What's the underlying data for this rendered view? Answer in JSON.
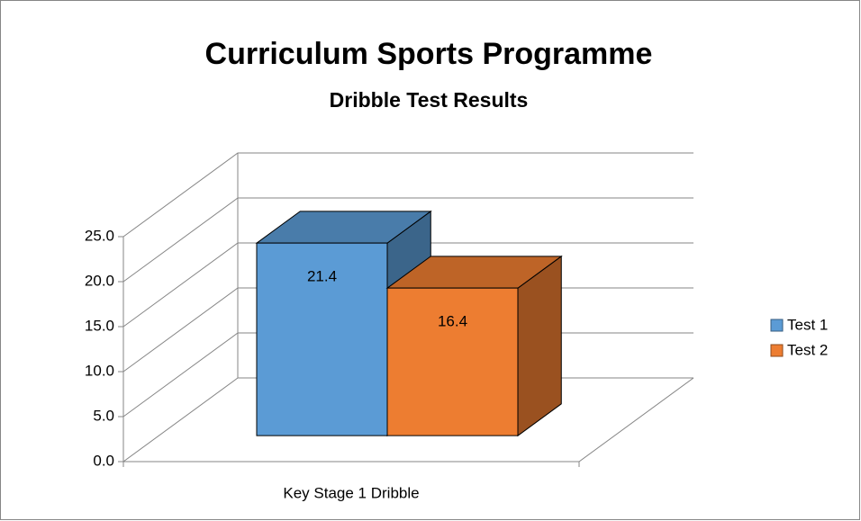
{
  "chart_data": {
    "type": "bar3d",
    "title": "Curriculum Sports Programme",
    "subtitle": "Dribble Test Results",
    "categories": [
      "Key Stage 1 Dribble"
    ],
    "series": [
      {
        "name": "Test 1",
        "color": "#5b9bd5",
        "values": [
          21.4
        ]
      },
      {
        "name": "Test 2",
        "color": "#ed7d31",
        "values": [
          16.4
        ]
      }
    ],
    "ylim": [
      0,
      25
    ],
    "yticks": [
      {
        "value": 0,
        "label": "0.0"
      },
      {
        "value": 5,
        "label": "5.0"
      },
      {
        "value": 10,
        "label": "10.0"
      },
      {
        "value": 15,
        "label": "15.0"
      },
      {
        "value": 20,
        "label": "20.0"
      },
      {
        "value": 25,
        "label": "25.0"
      }
    ],
    "grid": true,
    "legend": "right"
  }
}
